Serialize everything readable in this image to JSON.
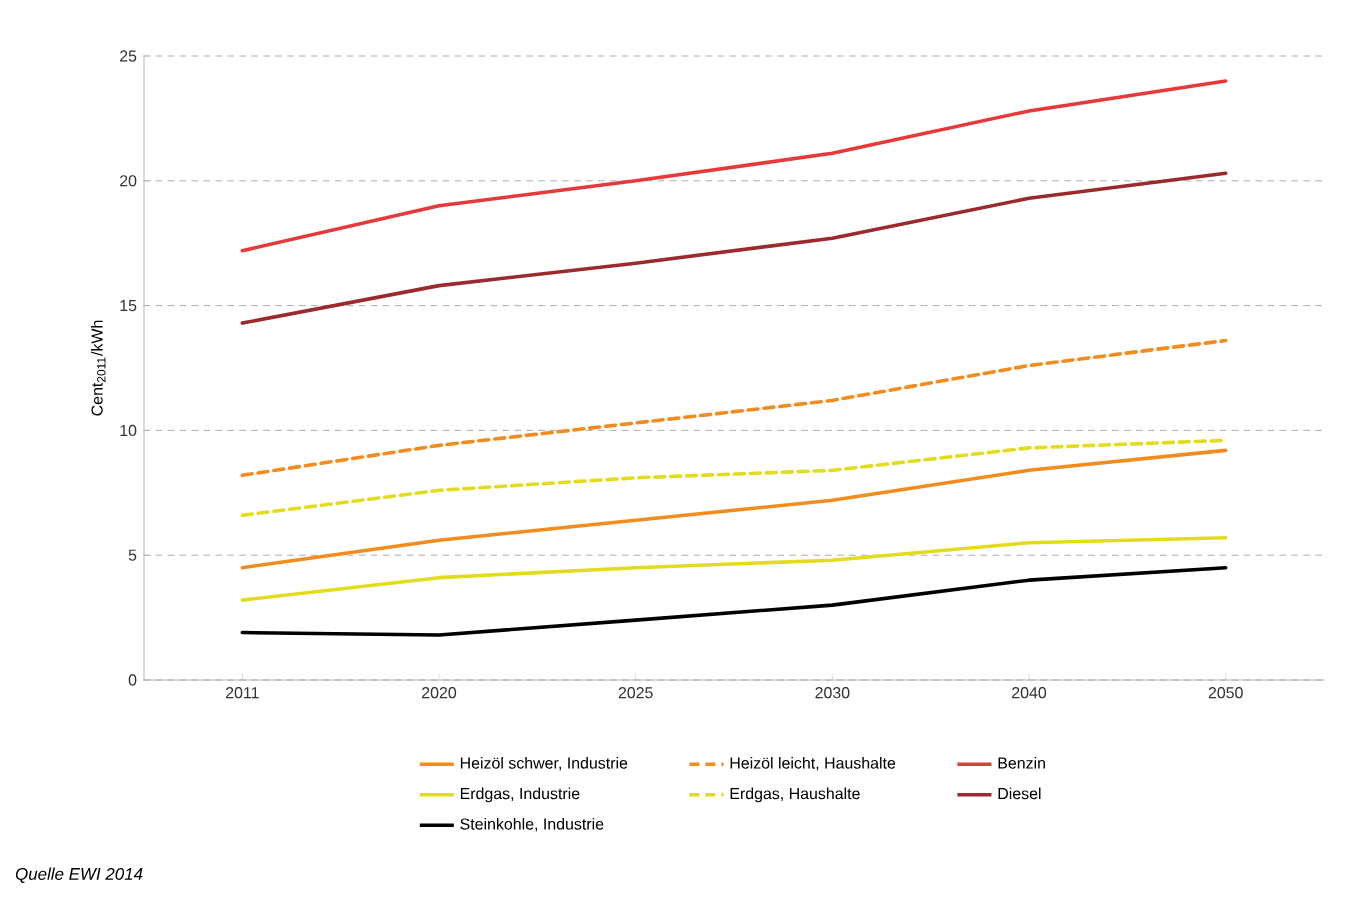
{
  "chart_data": {
    "type": "line",
    "ylabel": "Cent$_{2011}$/kWh",
    "categories": [
      "2011",
      "2020",
      "2025",
      "2030",
      "2040",
      "2050"
    ],
    "series": [
      {
        "name": "Heizöl schwer, Industrie",
        "color": "#f28c1e",
        "line_style": "solid",
        "values": [
          4.5,
          5.6,
          6.4,
          7.2,
          8.4,
          9.2
        ]
      },
      {
        "name": "Heizöl leicht, Haushalte",
        "color": "#f28c1e",
        "line_style": "dashed",
        "values": [
          8.2,
          9.4,
          10.3,
          11.2,
          12.6,
          13.6
        ]
      },
      {
        "name": "Benzin",
        "color": "#e8393a",
        "line_style": "solid",
        "values": [
          17.2,
          19.0,
          20.0,
          21.1,
          22.8,
          24.0
        ]
      },
      {
        "name": "Erdgas, Industrie",
        "color": "#e2dc1c",
        "line_style": "solid",
        "values": [
          3.2,
          4.1,
          4.5,
          4.8,
          5.5,
          5.7
        ]
      },
      {
        "name": "Erdgas, Haushalte",
        "color": "#e2dc1c",
        "line_style": "dashed",
        "values": [
          6.6,
          7.6,
          8.1,
          8.4,
          9.3,
          9.6
        ]
      },
      {
        "name": "Diesel",
        "color": "#9b2a2e",
        "line_style": "solid",
        "values": [
          14.3,
          15.8,
          16.7,
          17.7,
          19.3,
          20.3
        ]
      },
      {
        "name": "Steinkohle, Industrie",
        "color": "#000000",
        "line_style": "solid",
        "values": [
          1.9,
          1.8,
          2.4,
          3.0,
          4.0,
          4.5
        ]
      }
    ],
    "ylim": [
      0,
      25
    ],
    "yticks": [
      0,
      5,
      10,
      15,
      20,
      25
    ],
    "grid": "y",
    "legend": "bottom",
    "marker": "none",
    "annotations": [
      "Quelle EWI 2014"
    ]
  }
}
